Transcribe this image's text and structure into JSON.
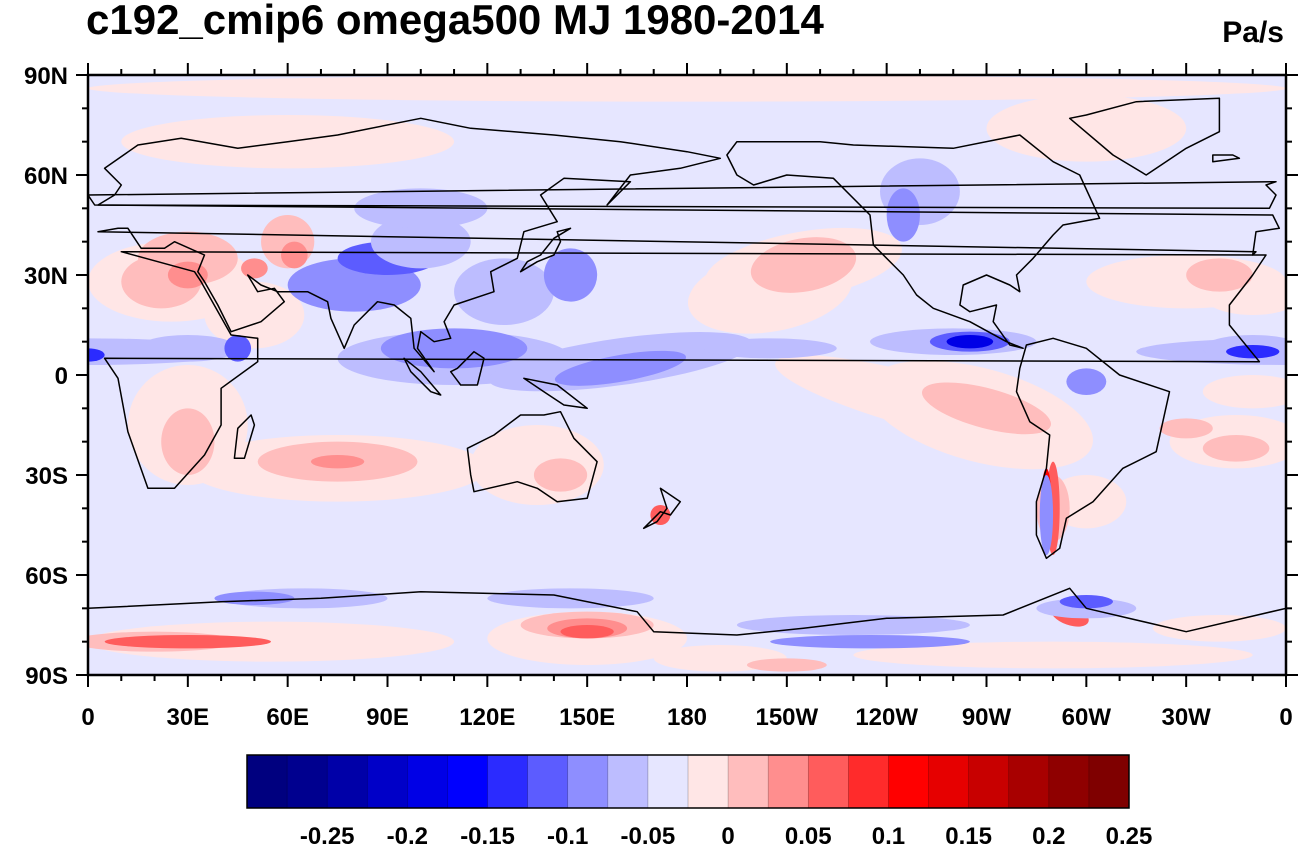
{
  "title": "c192_cmip6 omega500 MJ 1980-2014",
  "units": "Pa/s",
  "map": {
    "lon_labels": [
      "0",
      "30E",
      "60E",
      "90E",
      "120E",
      "150E",
      "180",
      "150W",
      "120W",
      "90W",
      "60W",
      "30W",
      "0"
    ],
    "lat_labels": [
      "90N",
      "60N",
      "30N",
      "0",
      "30S",
      "60S",
      "90S"
    ],
    "lat_values": [
      90,
      60,
      30,
      0,
      -30,
      -60,
      -90
    ],
    "lon_values": [
      0,
      30,
      60,
      90,
      120,
      150,
      180,
      210,
      240,
      270,
      300,
      330,
      360
    ]
  },
  "colorbar": {
    "colors": [
      "#00007f",
      "#00008f",
      "#0000a8",
      "#0000c8",
      "#0000e6",
      "#0000ff",
      "#2b2bff",
      "#5c5cff",
      "#8e8eff",
      "#bdbdff",
      "#e6e6ff",
      "#ffe6e6",
      "#ffbdbd",
      "#ff8e8e",
      "#ff5c5c",
      "#ff2b2b",
      "#ff0000",
      "#e60000",
      "#c80000",
      "#a80000",
      "#8f0000",
      "#7f0000"
    ],
    "labels": [
      "-0.25",
      "-0.2",
      "-0.15",
      "-0.1",
      "-0.05",
      "0",
      "0.05",
      "0.1",
      "0.15",
      "0.2",
      "0.25"
    ],
    "label_values": [
      -0.25,
      -0.2,
      -0.15,
      -0.1,
      -0.05,
      0,
      0.05,
      0.1,
      0.15,
      0.2,
      0.25
    ]
  }
}
